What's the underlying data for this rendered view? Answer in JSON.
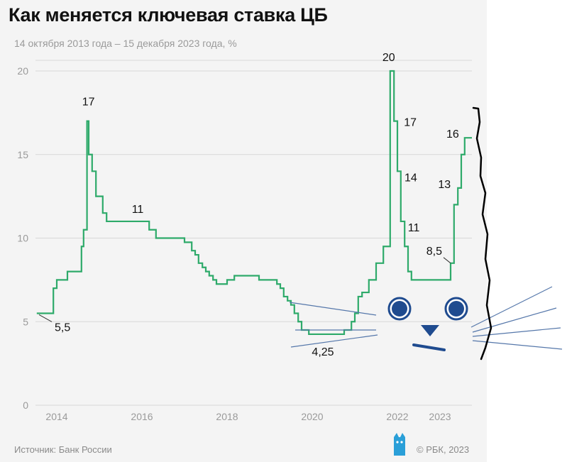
{
  "title": "Как меняется ключевая ставка ЦБ",
  "subtitle": "14 октября 2013 года – 15 декабря 2023 года, %",
  "source": "Источник: Банк России",
  "copyright": "© РБК, 2023",
  "colors": {
    "line": "#2eaa6a",
    "grid": "#d8d8d8",
    "eye": "#1f4b8f",
    "whisker": "#5577aa",
    "drawing": "#000000"
  },
  "chart_data": {
    "type": "line",
    "title": "Как меняется ключевая ставка ЦБ",
    "xlabel": "",
    "ylabel": "",
    "xlim": [
      2013.75,
      2024.0
    ],
    "ylim": [
      0,
      20
    ],
    "yticks": [
      0,
      5,
      10,
      15,
      20
    ],
    "xticks": [
      {
        "label": "2014",
        "value": 2014.25
      },
      {
        "label": "2016",
        "value": 2016.25
      },
      {
        "label": "2018",
        "value": 2018.25
      },
      {
        "label": "2020",
        "value": 2020.25
      },
      {
        "label": "2022",
        "value": 2022.25
      },
      {
        "label": "2023",
        "value": 2023.25
      }
    ],
    "grid": true,
    "series": [
      {
        "step": "post",
        "x": [
          2013.78,
          2014.17,
          2014.25,
          2014.33,
          2014.5,
          2014.58,
          2014.83,
          2014.88,
          2014.96,
          2015.0,
          2015.08,
          2015.17,
          2015.33,
          2015.42,
          2015.58,
          2016.42,
          2016.58,
          2016.75,
          2017.25,
          2017.42,
          2017.5,
          2017.58,
          2017.67,
          2017.75,
          2017.83,
          2017.92,
          2018.0,
          2018.08,
          2018.25,
          2018.42,
          2018.67,
          2018.92,
          2019.0,
          2019.42,
          2019.5,
          2019.58,
          2019.67,
          2019.75,
          2019.83,
          2019.92,
          2020.0,
          2020.17,
          2020.42,
          2020.58,
          2021.0,
          2021.17,
          2021.25,
          2021.33,
          2021.42,
          2021.58,
          2021.75,
          2021.92,
          2022.08,
          2022.17,
          2022.25,
          2022.33,
          2022.42,
          2022.5,
          2022.58,
          2022.67,
          2022.75,
          2023.0,
          2023.5,
          2023.58,
          2023.67,
          2023.75,
          2023.83,
          2023.92,
          2024.0
        ],
        "y": [
          5.5,
          7.0,
          7.5,
          7.5,
          8.0,
          8.0,
          9.5,
          10.5,
          17.0,
          15.0,
          14.0,
          12.5,
          11.5,
          11.0,
          11.0,
          10.5,
          10.0,
          10.0,
          9.75,
          9.25,
          9.0,
          8.5,
          8.25,
          8.0,
          7.75,
          7.5,
          7.25,
          7.25,
          7.5,
          7.75,
          7.75,
          7.75,
          7.5,
          7.25,
          7.0,
          6.5,
          6.25,
          6.0,
          5.5,
          5.0,
          4.5,
          4.25,
          4.25,
          4.25,
          4.5,
          5.0,
          5.5,
          6.5,
          6.75,
          7.5,
          8.5,
          9.5,
          20.0,
          17.0,
          14.0,
          11.0,
          9.5,
          8.0,
          7.5,
          7.5,
          7.5,
          7.5,
          8.5,
          12.0,
          13.0,
          15.0,
          16.0,
          16.0,
          16.0
        ]
      }
    ],
    "annotations": [
      {
        "text": "5,5",
        "x": 2013.9,
        "y": 5.5
      },
      {
        "text": "17",
        "x": 2014.96,
        "y": 17.0
      },
      {
        "text": "11",
        "x": 2015.75,
        "y": 11.0
      },
      {
        "text": "4,25",
        "x": 2020.5,
        "y": 4.25
      },
      {
        "text": "20",
        "x": 2022.08,
        "y": 20.0
      },
      {
        "text": "17",
        "x": 2022.17,
        "y": 17.0
      },
      {
        "text": "14",
        "x": 2022.25,
        "y": 14.0
      },
      {
        "text": "11",
        "x": 2022.33,
        "y": 11.0
      },
      {
        "text": "8,5",
        "x": 2023.5,
        "y": 8.5
      },
      {
        "text": "13",
        "x": 2023.67,
        "y": 13.0
      },
      {
        "text": "16",
        "x": 2023.83,
        "y": 16.0
      }
    ]
  }
}
